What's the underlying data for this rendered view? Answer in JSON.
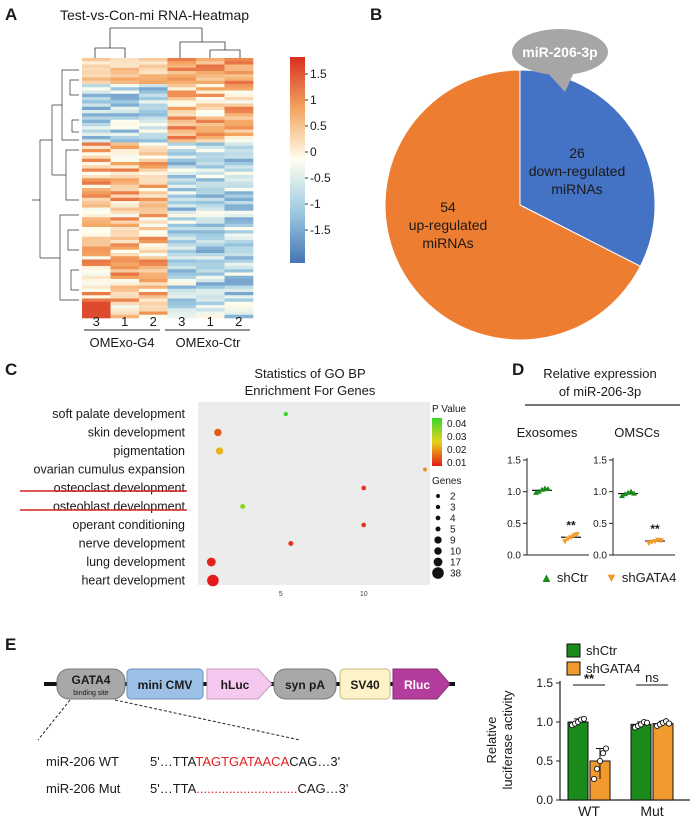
{
  "panels": {
    "A": {
      "label": "A",
      "title": "Test-vs-Con-mi RNA-Heatmap",
      "columns": [
        "3",
        "1",
        "2",
        "3",
        "1",
        "2"
      ],
      "groups": [
        "OMExo-G4",
        "OMExo-Ctr"
      ],
      "colorbar": [
        "1.5",
        "1",
        "0.5",
        "0",
        "-0.5",
        "-1",
        "-1.5"
      ]
    },
    "B": {
      "label": "B",
      "callout": "miR-206-3p",
      "chart_data": {
        "type": "pie",
        "title": "",
        "slices": [
          {
            "name": "down-regulated miRNAs",
            "value": 26,
            "count": "26",
            "line1": "down-regulated",
            "line2": "miRNAs",
            "color": "#4472c4"
          },
          {
            "name": "up-regulated miRNAs",
            "value": 54,
            "count": "54",
            "line1": "up-regulated",
            "line2": "miRNAs",
            "color": "#ed7d31"
          }
        ]
      }
    },
    "C": {
      "label": "C",
      "title1": "Statistics of GO BP",
      "title2": "Enrichment For Genes",
      "terms": [
        "soft palate development",
        "skin development",
        "pigmentation",
        "ovarian cumulus expansion",
        "osteoclast development",
        "osteoblast development",
        "operant conditioning",
        "nerve development",
        "lung development",
        "heart development"
      ],
      "pvalue_title": "P Value",
      "pvalue_ticks": [
        "0.04",
        "0.03",
        "0.02",
        "0.01"
      ],
      "genes_title": "Genes",
      "genes_legend": [
        "2",
        "3",
        "4",
        "5",
        "9",
        "10",
        "17",
        "38"
      ],
      "x_ticks": [
        "5",
        "10"
      ],
      "chart_data": {
        "type": "scatter",
        "title": "Statistics of GO BP Enrichment For Genes",
        "xlim": [
          0,
          14
        ],
        "x_ticks": [
          5,
          10
        ],
        "points": [
          {
            "term": "soft palate development",
            "x": 5.3,
            "genes": 3,
            "p": 0.045
          },
          {
            "term": "skin development",
            "x": 1.2,
            "genes": 10,
            "p": 0.012
          },
          {
            "term": "pigmentation",
            "x": 1.3,
            "genes": 9,
            "p": 0.022
          },
          {
            "term": "ovarian cumulus expansion",
            "x": 13.7,
            "genes": 2,
            "p": 0.018
          },
          {
            "term": "osteoclast development",
            "x": 10.0,
            "genes": 4,
            "p": 0.008
          },
          {
            "term": "osteoblast development",
            "x": 2.7,
            "genes": 5,
            "p": 0.035
          },
          {
            "term": "operant conditioning",
            "x": 10.0,
            "genes": 4,
            "p": 0.008
          },
          {
            "term": "nerve development",
            "x": 5.6,
            "genes": 5,
            "p": 0.008
          },
          {
            "term": "lung development",
            "x": 0.8,
            "genes": 17,
            "p": 0.006
          },
          {
            "term": "heart development",
            "x": 0.9,
            "genes": 38,
            "p": 0.004
          }
        ]
      }
    },
    "D": {
      "label": "D",
      "title1": "Relative expression",
      "title2": "of miR-206-3p",
      "sub1": "Exosomes",
      "sub2": "OMSCs",
      "yticks": [
        "1.5",
        "1.0",
        "0.5",
        "0.0"
      ],
      "sig": "**",
      "legend1": "shCtr",
      "legend2": "shGATA4",
      "chart_data": {
        "type": "scatter",
        "ylim": [
          0,
          1.5
        ],
        "groups": [
          {
            "name": "Exosomes",
            "series": [
              {
                "name": "shCtr",
                "mean": 1.02,
                "values": [
                  0.98,
                  1.0,
                  1.03,
                  1.05,
                  1.04
                ]
              },
              {
                "name": "shGATA4",
                "mean": 0.28,
                "values": [
                  0.22,
                  0.26,
                  0.28,
                  0.31,
                  0.33
                ]
              }
            ]
          },
          {
            "name": "OMSCs",
            "series": [
              {
                "name": "shCtr",
                "mean": 0.97,
                "values": [
                  0.93,
                  0.96,
                  0.98,
                  1.0,
                  0.97
                ]
              },
              {
                "name": "shGATA4",
                "mean": 0.22,
                "values": [
                  0.19,
                  0.21,
                  0.22,
                  0.24,
                  0.23
                ]
              }
            ]
          }
        ]
      }
    },
    "E": {
      "label": "E",
      "construct": {
        "gata4": "GATA4",
        "binding": "binding site",
        "cmv": "mini CMV",
        "hluc": "hLuc",
        "synpa": "syn pA",
        "sv40": "SV40",
        "rluc": "Rluc"
      },
      "wt_label": "miR-206 WT",
      "wt_pre": "5'…TTA",
      "wt_site": "TAGTGATAACA",
      "wt_post": "CAG…3'",
      "mut_label": "miR-206 Mut",
      "mut_pre": "5'…TTA",
      "mut_site": "............................",
      "mut_post": "CAG…3'",
      "ylabel1": "Relative",
      "ylabel2": "luciferase activity",
      "yticks": [
        "1.5",
        "1.0",
        "0.5",
        "0.0"
      ],
      "sig_wt": "**",
      "sig_mut": "ns",
      "legend1": "shCtr",
      "legend2": "shGATA4",
      "chart_data": {
        "type": "bar",
        "categories": [
          "WT",
          "Mut"
        ],
        "ylabel": "Relative luciferase activity",
        "ylim": [
          0,
          1.5
        ],
        "series": [
          {
            "name": "shCtr",
            "color": "#1a8a1a",
            "values": [
              1.0,
              0.97
            ],
            "points": [
              [
                0.96,
                0.98,
                1.0,
                1.03,
                1.04
              ],
              [
                0.93,
                0.95,
                0.97,
                1.0,
                0.99
              ]
            ]
          },
          {
            "name": "shGATA4",
            "color": "#f39a2e",
            "values": [
              0.5,
              0.98
            ],
            "points": [
              [
                0.27,
                0.4,
                0.5,
                0.6,
                0.66
              ],
              [
                0.95,
                0.97,
                0.99,
                1.01,
                0.98
              ]
            ]
          }
        ]
      }
    }
  }
}
